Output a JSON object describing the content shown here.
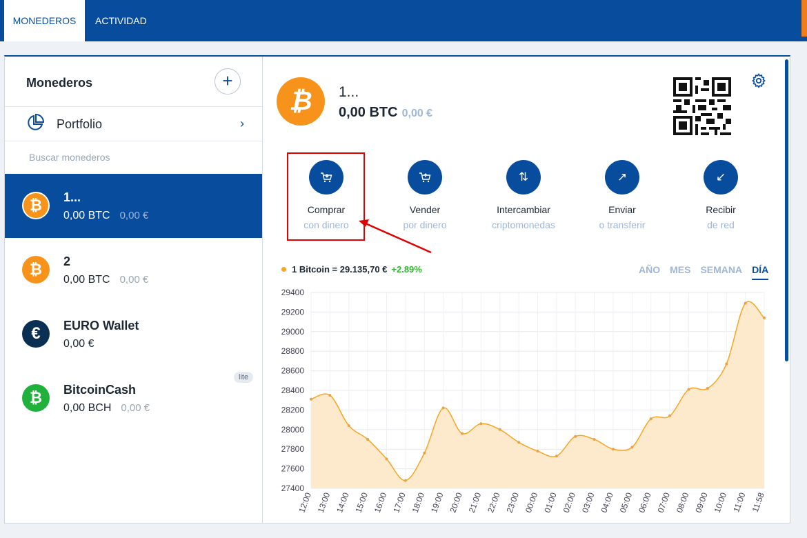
{
  "tabs": [
    {
      "label": "MONEDEROS"
    },
    {
      "label": "ACTIVIDAD"
    }
  ],
  "sidebar": {
    "title": "Monederos",
    "add_icon": "plus-icon",
    "portfolio": {
      "label": "Portfolio",
      "icon": "pie-chart-icon"
    },
    "search_placeholder": "Buscar monederos",
    "wallets": [
      {
        "name": "1...",
        "balance": "0,00 BTC",
        "fiat": "0,00 €",
        "icon": "bitcoin-icon",
        "glyph": "₿",
        "color": "#f7931a"
      },
      {
        "name": "2",
        "balance": "0,00 BTC",
        "fiat": "0,00 €",
        "icon": "bitcoin-icon",
        "glyph": "₿",
        "color": "#f7931a"
      },
      {
        "name": "EURO Wallet",
        "balance": "0,00 €",
        "fiat": "",
        "icon": "euro-icon",
        "glyph": "€",
        "color": "#0a2f52"
      },
      {
        "name": "BitcoinCash",
        "balance": "0,00 BCH",
        "fiat": "0,00 €",
        "icon": "bitcoin-cash-icon",
        "glyph": "₿",
        "color": "#0ac18e",
        "badge": "lite"
      }
    ]
  },
  "main": {
    "wallet_name": "1...",
    "balance": "0,00 BTC",
    "fiat": "0,00 €",
    "coin_glyph": "₿",
    "actions": [
      {
        "label": "Comprar",
        "sub": "con dinero",
        "icon": "cart-icon",
        "glyph": "⛟"
      },
      {
        "label": "Vender",
        "sub": "por dinero",
        "icon": "cart-sell-icon",
        "glyph": "⛟"
      },
      {
        "label": "Intercambiar",
        "sub": "criptomonedas",
        "icon": "swap-icon",
        "glyph": "⇅"
      },
      {
        "label": "Enviar",
        "sub": "o transferir",
        "icon": "arrow-up-right-icon",
        "glyph": "↗"
      },
      {
        "label": "Recibir",
        "sub": "de red",
        "icon": "arrow-down-left-icon",
        "glyph": "↙"
      }
    ],
    "price": {
      "text": "1 Bitcoin = 29.135,70 €",
      "change": "+2.89%"
    },
    "ranges": [
      "AÑO",
      "MES",
      "SEMANA",
      "DÍA"
    ],
    "active_range": "DÍA"
  },
  "colors": {
    "accent": "#084c9e",
    "bitcoin": "#f7931a",
    "bch": "#0ac18e",
    "annotation": "#e00000"
  },
  "chart_data": {
    "type": "area",
    "x": [
      "12:00",
      "13:00",
      "14:00",
      "15:00",
      "16:00",
      "17:00",
      "18:00",
      "19:00",
      "20:00",
      "21:00",
      "22:00",
      "23:00",
      "00:00",
      "01:00",
      "02:00",
      "03:00",
      "04:00",
      "05:00",
      "06:00",
      "07:00",
      "08:00",
      "09:00",
      "10:00",
      "11:00",
      "11:58"
    ],
    "series": [
      {
        "values": [
          28310,
          28350,
          28040,
          27900,
          27700,
          27480,
          27760,
          28220,
          27960,
          28060,
          28000,
          27870,
          27780,
          27730,
          27930,
          27900,
          27800,
          27820,
          28110,
          28140,
          28410,
          28420,
          28670,
          29290,
          29140
        ]
      }
    ],
    "ylim": [
      27400,
      29400
    ],
    "yticks": [
      27400,
      27600,
      27800,
      28000,
      28200,
      28400,
      28600,
      28800,
      29000,
      29200,
      29400
    ],
    "grid": true,
    "color": "#f5a623"
  }
}
